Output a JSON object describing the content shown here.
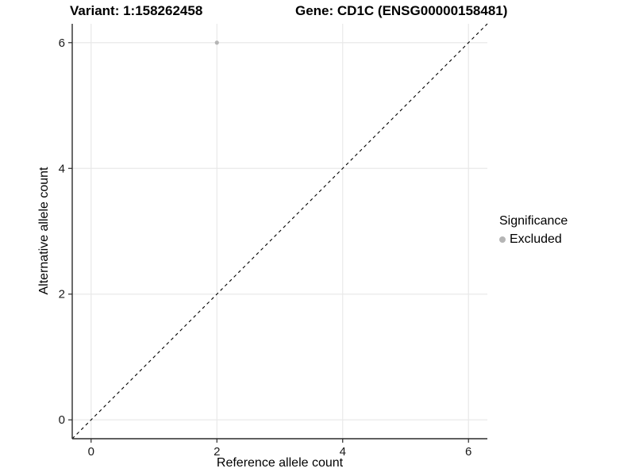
{
  "chart_data": {
    "type": "scatter",
    "title_left": "Variant: 1:158262458",
    "title_right": "Gene: CD1C (ENSG00000158481)",
    "xlabel": "Reference allele count",
    "ylabel": "Alternative allele count",
    "xlim": [
      -0.3,
      6.3
    ],
    "ylim": [
      -0.3,
      6.3
    ],
    "x_ticks": [
      0,
      2,
      4,
      6
    ],
    "y_ticks": [
      0,
      2,
      4,
      6
    ],
    "grid": "major",
    "points": [
      {
        "x": 2,
        "y": 6,
        "series": "Excluded"
      }
    ],
    "reference_line": {
      "type": "identity",
      "dashed": true,
      "color": "#000000"
    },
    "legend": {
      "title": "Significance",
      "position": "right",
      "items": [
        {
          "label": "Excluded",
          "color": "#b5b5b5"
        }
      ]
    },
    "colors": {
      "point": "#b5b5b5",
      "grid": "#e9e9e9",
      "axis": "#2b2b2b",
      "tick_text": "#1a1a1a",
      "background": "#ffffff"
    }
  }
}
